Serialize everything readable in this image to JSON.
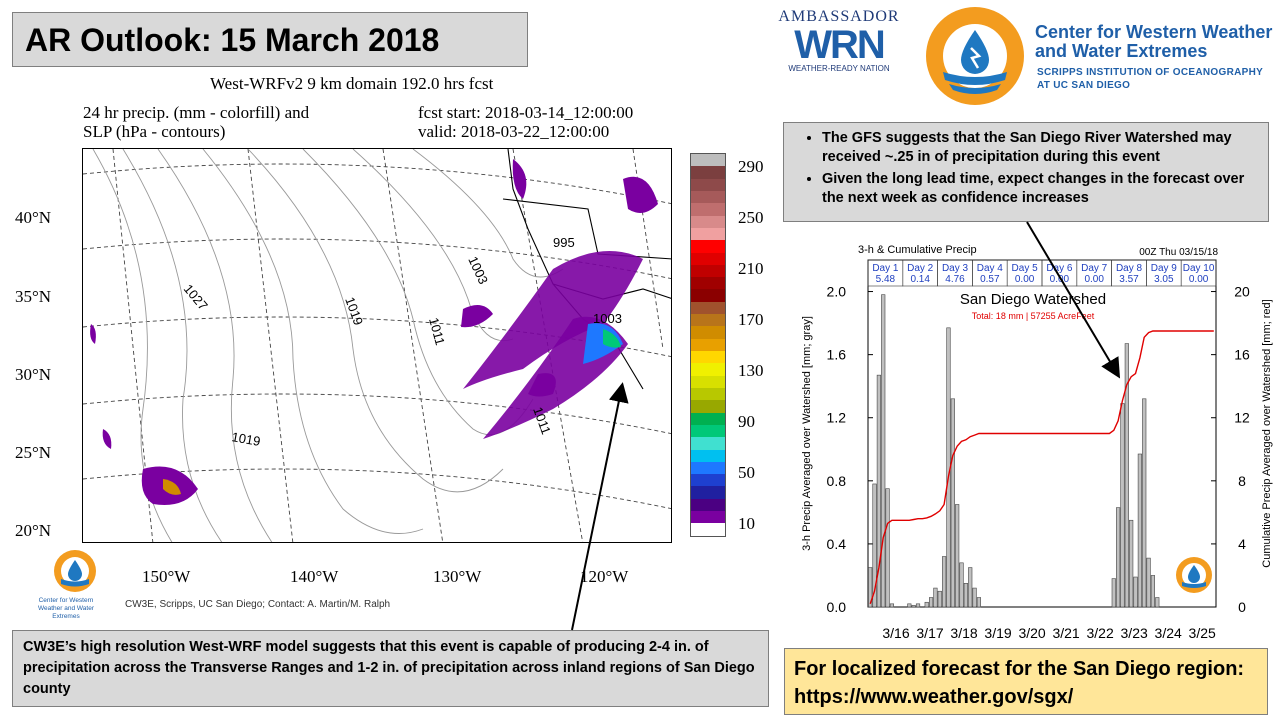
{
  "title": "AR Outlook: 15 March 2018",
  "map": {
    "title": "West-WRFv2 9 km domain 192.0 hrs fcst",
    "var_line1": "24 hr precip. (mm - colorfill) and",
    "var_line2": "SLP (hPa - contours)",
    "fcst_start": "fcst start: 2018-03-14_12:00:00",
    "valid": "valid:  2018-03-22_12:00:00",
    "lat_labels": [
      "40°N",
      "35°N",
      "30°N",
      "25°N",
      "20°N"
    ],
    "lon_labels": [
      "150°W",
      "140°W",
      "130°W",
      "120°W"
    ],
    "contour_labels": [
      "1027",
      "1019",
      "1003",
      "995",
      "1011",
      "1003",
      "1019",
      "1011"
    ],
    "colorbar_labels": [
      "290",
      "250",
      "210",
      "170",
      "130",
      "90",
      "50",
      "10"
    ],
    "colorbar_colors": [
      "#bdbdbd",
      "#7b3f3f",
      "#8e4a4a",
      "#a65a5a",
      "#bf6e6e",
      "#d88a8a",
      "#f0a0a0",
      "#ff0000",
      "#e00000",
      "#c00000",
      "#a00000",
      "#8b0000",
      "#a0522d",
      "#b8741a",
      "#d08c00",
      "#e8a000",
      "#ffd700",
      "#f0f000",
      "#d8e000",
      "#b8c800",
      "#98a800",
      "#00b050",
      "#00c878",
      "#40e0d0",
      "#00c0f0",
      "#1e78ff",
      "#1e40d0",
      "#2020a0",
      "#4b0082",
      "#7a00a0",
      "#ffffff"
    ],
    "credit": "CW3E, Scripps, UC San Diego; Contact: A. Martin/M. Ralph",
    "small_logo_text": "Center for Western Weather and Water Extremes"
  },
  "logos": {
    "wrn_top": "AMBASSADOR",
    "wrn_main": "WRN",
    "wrn_bottom": "WEATHER-READY NATION",
    "cw3e_name1": "Center for Western Weather",
    "cw3e_name2": "and Water Extremes",
    "cw3e_sub1": "SCRIPPS INSTITUTION OF OCEANOGRAPHY",
    "cw3e_sub2": "AT UC SAN DIEGO"
  },
  "notes": {
    "top_bullets": [
      "The GFS suggests that the San Diego River Watershed may received ~.25 in of precipitation during this event",
      "Given the long lead time, expect changes in the forecast over the next week as confidence increases"
    ],
    "bottom": "CW3E’s high resolution West-WRF model suggests that this event is capable of producing 2-4 in. of precipitation across the Transverse Ranges and 1-2 in. of precipitation across inland regions of San Diego county",
    "yellow_line1": "For localized forecast for the San Diego region:",
    "yellow_line2": "https://www.weather.gov/sgx/"
  },
  "chart_data": {
    "type": "bar",
    "title": "3-h & Cumulative Precip",
    "run_label": "00Z Thu 03/15/18",
    "subtitle": "San Diego Watershed",
    "total_label": "Total: 18 mm | 57255 AcreFeet",
    "ylabel": "3-h Precip Averaged over Watershed [mm; gray]",
    "ylabel_right": "Cumulative Precip Averaged over Watershed [mm; red]",
    "ylim": [
      0,
      2.2
    ],
    "ylim_right": [
      0,
      22
    ],
    "yticks": [
      "0.0",
      "0.4",
      "0.8",
      "1.2",
      "1.6",
      "2.0"
    ],
    "yticks_right": [
      "0",
      "4",
      "8",
      "12",
      "16",
      "20"
    ],
    "date_labels": [
      "3/16",
      "3/17",
      "3/18",
      "3/19",
      "3/20",
      "3/21",
      "3/22",
      "3/23",
      "3/24",
      "3/25"
    ],
    "days": [
      {
        "name": "Day 1",
        "value": "5.48"
      },
      {
        "name": "Day 2",
        "value": "0.14"
      },
      {
        "name": "Day 3",
        "value": "4.76"
      },
      {
        "name": "Day 4",
        "value": "0.57"
      },
      {
        "name": "Day 5",
        "value": "0.00"
      },
      {
        "name": "Day 6",
        "value": "0.00"
      },
      {
        "name": "Day 7",
        "value": "0.00"
      },
      {
        "name": "Day 8",
        "value": "3.57"
      },
      {
        "name": "Day 9",
        "value": "3.05"
      },
      {
        "name": "Day 10",
        "value": "0.00"
      }
    ],
    "series": [
      {
        "name": "3-h precip",
        "color": "#c0c0c0",
        "values": [
          0.25,
          0.78,
          1.47,
          1.98,
          0.75,
          0.02,
          0,
          0,
          0,
          0.02,
          0.01,
          0.02,
          0,
          0.03,
          0.06,
          0.12,
          0.1,
          0.32,
          1.77,
          1.32,
          0.65,
          0.28,
          0.15,
          0.25,
          0.12,
          0.06,
          0,
          0,
          0,
          0,
          0,
          0,
          0,
          0,
          0,
          0,
          0,
          0,
          0,
          0,
          0,
          0,
          0,
          0,
          0,
          0,
          0,
          0,
          0,
          0,
          0,
          0,
          0,
          0,
          0,
          0,
          0.18,
          0.63,
          1.29,
          1.67,
          0.55,
          0.19,
          0.97,
          1.32,
          0.31,
          0.2,
          0.06,
          0,
          0,
          0,
          0,
          0,
          0,
          0,
          0,
          0,
          0,
          0,
          0,
          0
        ]
      },
      {
        "name": "Cumulative precip",
        "color": "#e00000",
        "values": [
          0.2,
          1,
          2.5,
          4.4,
          5.3,
          5.5,
          5.5,
          5.5,
          5.5,
          5.5,
          5.55,
          5.6,
          5.6,
          5.65,
          5.75,
          5.9,
          6.1,
          6.5,
          8.3,
          9.6,
          10.2,
          10.5,
          10.6,
          10.8,
          10.9,
          11,
          11,
          11,
          11,
          11,
          11,
          11,
          11,
          11,
          11,
          11,
          11,
          11,
          11,
          11,
          11,
          11,
          11,
          11,
          11,
          11,
          11,
          11,
          11,
          11,
          11,
          11,
          11,
          11,
          11,
          11,
          11.2,
          11.8,
          13.1,
          14.1,
          14.6,
          14.8,
          15.8,
          17.1,
          17.4,
          17.5,
          17.5,
          17.5,
          17.5,
          17.5,
          17.5,
          17.5,
          17.5,
          17.5,
          17.5,
          17.5,
          17.5,
          17.5,
          17.5,
          17.5
        ]
      }
    ]
  }
}
